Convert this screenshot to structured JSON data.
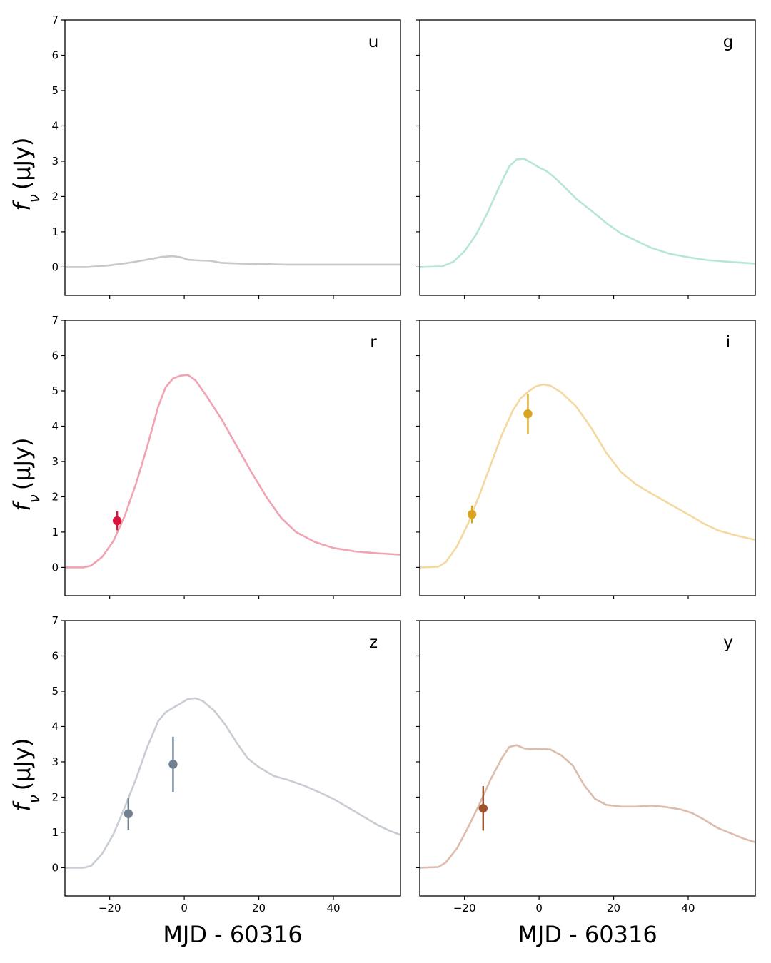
{
  "chart_data": {
    "type": "line",
    "layout": "3x2 grid of panels with shared axes",
    "xlabel": "MJD - 60316",
    "ylabel": {
      "main": "f",
      "sub": "ν",
      "units": "(μJy)"
    },
    "xlim": [
      -32,
      58
    ],
    "ylim": [
      -0.8,
      7
    ],
    "xticks": [
      -20,
      0,
      20,
      40
    ],
    "xtick_labels": [
      "−20",
      "0",
      "20",
      "40"
    ],
    "yticks": [
      0,
      1,
      2,
      3,
      4,
      5,
      6,
      7
    ],
    "grid": false,
    "panels": [
      {
        "band": "u",
        "color": "#c8c8c8",
        "point_color": "#b0b0b0",
        "curve": [
          [
            -32,
            0.0
          ],
          [
            -26,
            0.0
          ],
          [
            -20,
            0.05
          ],
          [
            -15,
            0.12
          ],
          [
            -10,
            0.21
          ],
          [
            -6,
            0.29
          ],
          [
            -3,
            0.31
          ],
          [
            -1,
            0.28
          ],
          [
            1,
            0.21
          ],
          [
            4,
            0.19
          ],
          [
            7,
            0.18
          ],
          [
            10,
            0.12
          ],
          [
            15,
            0.1
          ],
          [
            20,
            0.09
          ],
          [
            27,
            0.07
          ],
          [
            35,
            0.07
          ],
          [
            45,
            0.07
          ],
          [
            58,
            0.07
          ]
        ],
        "points": []
      },
      {
        "band": "g",
        "color": "#b5e6d6",
        "point_color": "#5fb8a0",
        "curve": [
          [
            -32,
            0.0
          ],
          [
            -26,
            0.02
          ],
          [
            -23,
            0.15
          ],
          [
            -20,
            0.45
          ],
          [
            -17,
            0.9
          ],
          [
            -14,
            1.5
          ],
          [
            -11,
            2.2
          ],
          [
            -8,
            2.85
          ],
          [
            -6,
            3.05
          ],
          [
            -4,
            3.07
          ],
          [
            -2,
            2.95
          ],
          [
            0,
            2.82
          ],
          [
            2,
            2.72
          ],
          [
            4,
            2.55
          ],
          [
            7,
            2.25
          ],
          [
            10,
            1.93
          ],
          [
            14,
            1.6
          ],
          [
            18,
            1.25
          ],
          [
            22,
            0.95
          ],
          [
            26,
            0.75
          ],
          [
            30,
            0.55
          ],
          [
            35,
            0.38
          ],
          [
            40,
            0.28
          ],
          [
            45,
            0.2
          ],
          [
            52,
            0.14
          ],
          [
            58,
            0.1
          ]
        ],
        "points": []
      },
      {
        "band": "r",
        "color": "#f0a3b2",
        "point_color": "#dc143c",
        "curve": [
          [
            -32,
            0.0
          ],
          [
            -27,
            0.0
          ],
          [
            -25,
            0.05
          ],
          [
            -22,
            0.3
          ],
          [
            -19,
            0.75
          ],
          [
            -16,
            1.45
          ],
          [
            -13,
            2.35
          ],
          [
            -10,
            3.4
          ],
          [
            -7,
            4.55
          ],
          [
            -5,
            5.1
          ],
          [
            -3,
            5.35
          ],
          [
            -1,
            5.43
          ],
          [
            1,
            5.45
          ],
          [
            3,
            5.3
          ],
          [
            6,
            4.85
          ],
          [
            10,
            4.2
          ],
          [
            14,
            3.45
          ],
          [
            18,
            2.7
          ],
          [
            22,
            2.0
          ],
          [
            26,
            1.4
          ],
          [
            30,
            1.0
          ],
          [
            35,
            0.72
          ],
          [
            40,
            0.55
          ],
          [
            46,
            0.45
          ],
          [
            52,
            0.4
          ],
          [
            58,
            0.36
          ]
        ],
        "points": [
          {
            "x": -18,
            "y": 1.32,
            "err": 0.27
          }
        ]
      },
      {
        "band": "i",
        "color": "#f3d9a0",
        "point_color": "#d9a520",
        "curve": [
          [
            -32,
            0.0
          ],
          [
            -27,
            0.02
          ],
          [
            -25,
            0.15
          ],
          [
            -22,
            0.6
          ],
          [
            -19,
            1.25
          ],
          [
            -16,
            2.05
          ],
          [
            -13,
            2.9
          ],
          [
            -10,
            3.75
          ],
          [
            -7,
            4.45
          ],
          [
            -5,
            4.78
          ],
          [
            -3,
            4.97
          ],
          [
            -1,
            5.12
          ],
          [
            1,
            5.18
          ],
          [
            3,
            5.15
          ],
          [
            6,
            4.95
          ],
          [
            10,
            4.55
          ],
          [
            14,
            3.95
          ],
          [
            18,
            3.25
          ],
          [
            22,
            2.7
          ],
          [
            26,
            2.35
          ],
          [
            30,
            2.1
          ],
          [
            35,
            1.8
          ],
          [
            40,
            1.5
          ],
          [
            44,
            1.25
          ],
          [
            48,
            1.05
          ],
          [
            53,
            0.9
          ],
          [
            58,
            0.78
          ]
        ],
        "points": [
          {
            "x": -18,
            "y": 1.5,
            "err": 0.25
          },
          {
            "x": -3,
            "y": 4.35,
            "err": 0.57
          }
        ]
      },
      {
        "band": "z",
        "color": "#c8cdd4",
        "point_color": "#708090",
        "curve": [
          [
            -32,
            0.0
          ],
          [
            -27,
            0.0
          ],
          [
            -25,
            0.05
          ],
          [
            -22,
            0.4
          ],
          [
            -19,
            0.95
          ],
          [
            -16,
            1.7
          ],
          [
            -13,
            2.5
          ],
          [
            -10,
            3.4
          ],
          [
            -7,
            4.15
          ],
          [
            -5,
            4.4
          ],
          [
            -3,
            4.53
          ],
          [
            -1,
            4.65
          ],
          [
            1,
            4.78
          ],
          [
            3,
            4.8
          ],
          [
            5,
            4.72
          ],
          [
            8,
            4.45
          ],
          [
            11,
            4.05
          ],
          [
            14,
            3.55
          ],
          [
            17,
            3.1
          ],
          [
            20,
            2.85
          ],
          [
            24,
            2.6
          ],
          [
            28,
            2.48
          ],
          [
            32,
            2.33
          ],
          [
            36,
            2.15
          ],
          [
            40,
            1.95
          ],
          [
            44,
            1.7
          ],
          [
            48,
            1.45
          ],
          [
            52,
            1.2
          ],
          [
            55,
            1.05
          ],
          [
            58,
            0.93
          ]
        ],
        "points": [
          {
            "x": -15,
            "y": 1.53,
            "err": 0.45
          },
          {
            "x": -3,
            "y": 2.93,
            "err": 0.78
          }
        ]
      },
      {
        "band": "y",
        "color": "#dcbcaa",
        "point_color": "#a0522d",
        "curve": [
          [
            -32,
            0.0
          ],
          [
            -27,
            0.02
          ],
          [
            -25,
            0.15
          ],
          [
            -22,
            0.55
          ],
          [
            -19,
            1.15
          ],
          [
            -16,
            1.8
          ],
          [
            -13,
            2.5
          ],
          [
            -10,
            3.1
          ],
          [
            -8,
            3.42
          ],
          [
            -6,
            3.47
          ],
          [
            -4,
            3.38
          ],
          [
            -2,
            3.36
          ],
          [
            0,
            3.37
          ],
          [
            3,
            3.35
          ],
          [
            6,
            3.18
          ],
          [
            9,
            2.9
          ],
          [
            12,
            2.35
          ],
          [
            15,
            1.95
          ],
          [
            18,
            1.78
          ],
          [
            22,
            1.73
          ],
          [
            26,
            1.73
          ],
          [
            30,
            1.76
          ],
          [
            34,
            1.72
          ],
          [
            38,
            1.65
          ],
          [
            41,
            1.55
          ],
          [
            44,
            1.38
          ],
          [
            48,
            1.12
          ],
          [
            52,
            0.95
          ],
          [
            55,
            0.82
          ],
          [
            58,
            0.72
          ]
        ],
        "points": [
          {
            "x": -15,
            "y": 1.68,
            "err": 0.63
          }
        ]
      }
    ]
  }
}
